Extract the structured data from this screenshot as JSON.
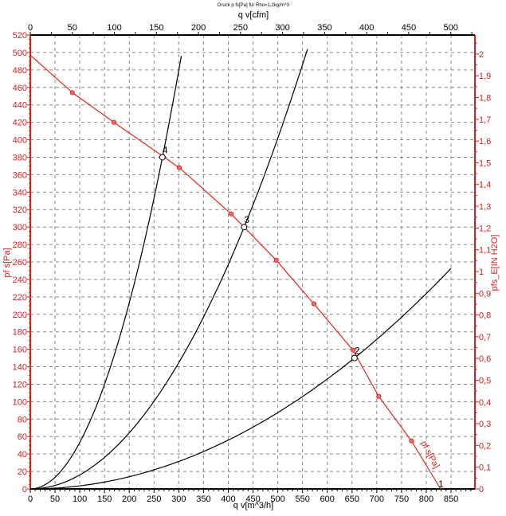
{
  "chart_data": {
    "type": "line",
    "title": "Druck p fs[Pa] für Rho=1,2kg/m^3",
    "xlabel": "q v[m^3/h]",
    "x2label": "q v[cfm]",
    "ylabel": "pf s[Pa]",
    "y2label": "pfs_E[IN H2O]",
    "xlim": [
      0,
      898
    ],
    "xticks": [
      0,
      50,
      100,
      150,
      200,
      250,
      300,
      350,
      400,
      450,
      500,
      550,
      600,
      650,
      700,
      750,
      800,
      850
    ],
    "x2ticks": [
      0,
      50,
      100,
      150,
      200,
      250,
      300,
      350,
      400,
      450,
      500
    ],
    "x2_per_x": 0.5886,
    "ylim": [
      0,
      520
    ],
    "yticks": [
      0,
      20,
      40,
      60,
      80,
      100,
      120,
      140,
      160,
      180,
      200,
      220,
      240,
      260,
      280,
      300,
      320,
      340,
      360,
      380,
      400,
      420,
      440,
      460,
      480,
      500,
      520
    ],
    "y2ticks": [
      "0",
      "0,1",
      "0,2",
      "0,3",
      "0,4",
      "0,5",
      "0,6",
      "0,7",
      "0,8",
      "0,9",
      "1",
      "1,1",
      "1,2",
      "1,3",
      "1,4",
      "1,5",
      "1,6",
      "1,7",
      "1,8",
      "1,9",
      "2"
    ],
    "y2_pa_per_unit": 249.1,
    "grid": true,
    "colors": {
      "fan": "#e8221c",
      "axis_red": "#d42020",
      "system": "#000000"
    },
    "fan_curve": {
      "name": "pf s[Pa]",
      "x": [
        0,
        85,
        169,
        301,
        406,
        497,
        573,
        652,
        704,
        770,
        829
      ],
      "y": [
        497,
        454,
        420,
        368,
        315,
        262,
        212,
        159,
        106,
        55,
        0
      ],
      "markers": [
        [
          85,
          454
        ],
        [
          169,
          420
        ],
        [
          301,
          368
        ],
        [
          406,
          315
        ],
        [
          497,
          262
        ],
        [
          573,
          212
        ],
        [
          652,
          159
        ],
        [
          704,
          106
        ],
        [
          770,
          55
        ]
      ]
    },
    "system_curves": [
      {
        "name": "4",
        "k": 0.00533,
        "x_max": 305
      },
      {
        "name": "3",
        "k": 0.001607,
        "x_max": 560
      },
      {
        "name": "2",
        "k": 0.0003497,
        "x_max": 853
      }
    ],
    "operating_points": [
      {
        "label": "4",
        "x": 267,
        "y": 380
      },
      {
        "label": "3",
        "x": 432,
        "y": 300
      },
      {
        "label": "2",
        "x": 655,
        "y": 150
      },
      {
        "label": "1",
        "x": 829,
        "y": 0
      }
    ]
  }
}
